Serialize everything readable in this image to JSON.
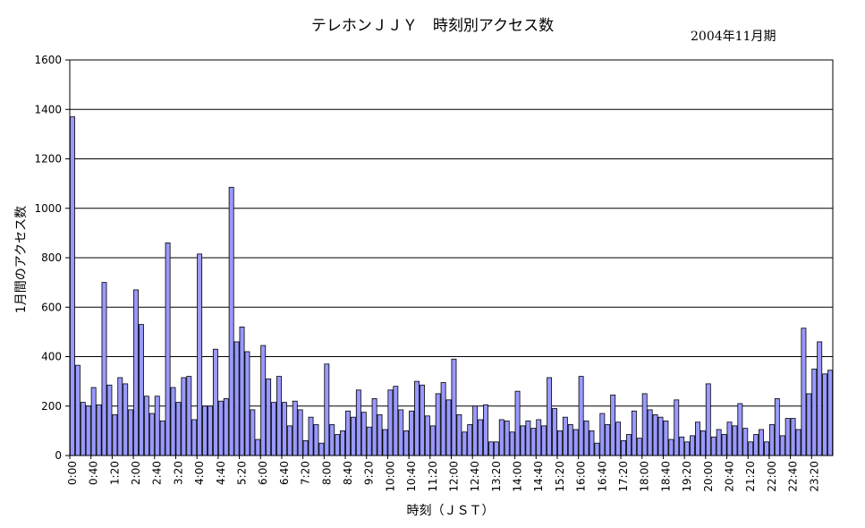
{
  "chart_data": {
    "type": "bar",
    "title": "テレホンＪＪＹ　時刻別アクセス数",
    "subtitle": "2004年11月期",
    "xlabel": "時刻（ＪＳＴ）",
    "ylabel": "1月間のアクセス数",
    "ylim": [
      0,
      1600
    ],
    "yticks": [
      0,
      200,
      400,
      600,
      800,
      1000,
      1200,
      1400,
      1600
    ],
    "grid": true,
    "bar_color": "#9999ff",
    "tick_labels": [
      "0:00",
      "0:40",
      "1:20",
      "2:00",
      "2:40",
      "3:20",
      "4:00",
      "4:40",
      "5:20",
      "6:00",
      "6:40",
      "7:20",
      "8:00",
      "8:40",
      "9:20",
      "10:00",
      "10:40",
      "11:20",
      "12:00",
      "12:40",
      "13:20",
      "14:00",
      "14:40",
      "15:20",
      "16:00",
      "16:40",
      "17:20",
      "18:00",
      "18:40",
      "19:20",
      "20:00",
      "20:40",
      "21:20",
      "22:00",
      "22:40",
      "23:20"
    ],
    "values": [
      1370,
      365,
      215,
      200,
      275,
      205,
      700,
      285,
      165,
      315,
      290,
      185,
      670,
      530,
      240,
      170,
      240,
      140,
      860,
      275,
      215,
      315,
      320,
      145,
      815,
      200,
      200,
      430,
      220,
      230,
      1085,
      460,
      520,
      420,
      185,
      65,
      445,
      310,
      215,
      320,
      215,
      120,
      220,
      185,
      60,
      155,
      125,
      50,
      370,
      125,
      85,
      100,
      180,
      155,
      265,
      175,
      115,
      230,
      165,
      105,
      265,
      280,
      185,
      100,
      180,
      300,
      285,
      160,
      120,
      250,
      295,
      225,
      390,
      165,
      95,
      125,
      200,
      145,
      205,
      55,
      55,
      145,
      140,
      95,
      260,
      120,
      140,
      110,
      145,
      120,
      315,
      190,
      100,
      155,
      125,
      105,
      320,
      140,
      100,
      50,
      170,
      125,
      245,
      135,
      60,
      85,
      180,
      70,
      250,
      185,
      165,
      155,
      140,
      65,
      225,
      75,
      55,
      80,
      135,
      100,
      290,
      75,
      105,
      85,
      135,
      120,
      210,
      110,
      55,
      85,
      105,
      55,
      125,
      230,
      80,
      150,
      150,
      105,
      515,
      250,
      350,
      460,
      330,
      345
    ]
  }
}
